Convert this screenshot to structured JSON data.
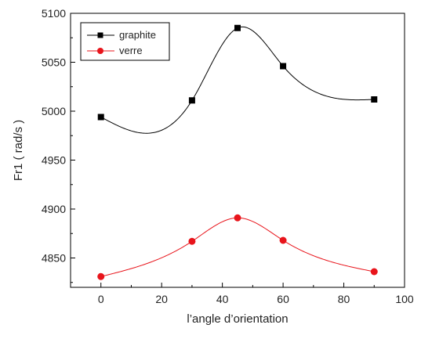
{
  "chart_data": {
    "type": "line",
    "xlabel": "l’angle d’orientation",
    "ylabel": "Fr1 ( rad/s )",
    "xlim": [
      -10,
      100
    ],
    "ylim": [
      4820,
      5100
    ],
    "xticks": [
      0,
      20,
      40,
      60,
      80,
      100
    ],
    "yticks": [
      4850,
      4900,
      4950,
      5000,
      5050,
      5100
    ],
    "xtick_labels": [
      "0",
      "20",
      "40",
      "60",
      "80",
      "100"
    ],
    "ytick_labels": [
      "4850",
      "4900",
      "4950",
      "5000",
      "5050",
      "5100"
    ],
    "grid": false,
    "legend_position": "top-left",
    "series": [
      {
        "name": "graphite",
        "color": "#000000",
        "marker": "square",
        "x": [
          0,
          30,
          45,
          60,
          90
        ],
        "y": [
          4994,
          5011,
          5085,
          5046,
          5012
        ]
      },
      {
        "name": "verre",
        "color": "#e8141b",
        "marker": "circle",
        "x": [
          0,
          30,
          45,
          60,
          90
        ],
        "y": [
          4831,
          4867,
          4891,
          4868,
          4836
        ]
      }
    ]
  }
}
